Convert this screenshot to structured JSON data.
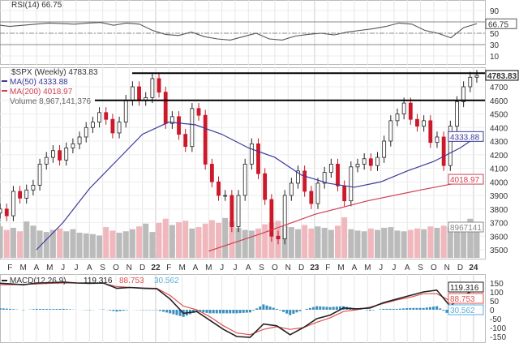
{
  "chart_data": [
    {
      "type": "line",
      "panel": "rsi",
      "title": "RSI(14) 66.75",
      "value": 66.75,
      "yticks": [
        90,
        50,
        30,
        10
      ],
      "ylim": [
        0,
        100
      ],
      "levels": [
        70,
        50,
        30
      ],
      "values": [
        65,
        62,
        64,
        66,
        68,
        67,
        66,
        68,
        69,
        64,
        68,
        66,
        55,
        48,
        46,
        52,
        44,
        40,
        38,
        44,
        50,
        40,
        38,
        45,
        48,
        50,
        47,
        52,
        55,
        58,
        62,
        68,
        66,
        55,
        50,
        42,
        60,
        66.75
      ]
    },
    {
      "type": "candlestick",
      "panel": "price",
      "title": "$SPX (Weekly) 4783.83",
      "last": "4783.83",
      "yticks": [
        4700,
        4600,
        4500,
        4400,
        4300,
        4200,
        4100,
        4000,
        3900,
        3800,
        3700,
        3600,
        3500
      ],
      "ylim": [
        3500,
        4860
      ],
      "closes": [
        3800,
        3750,
        3930,
        3880,
        3940,
        3975,
        4130,
        4180,
        4230,
        4160,
        4250,
        4280,
        4330,
        4400,
        4440,
        4510,
        4460,
        4360,
        4440,
        4600,
        4700,
        4600,
        4620,
        4760,
        4660,
        4430,
        4480,
        4350,
        4260,
        4540,
        4490,
        4130,
        4000,
        3900,
        3900,
        3670,
        3900,
        4130,
        4280,
        4060,
        3870,
        3600,
        3580,
        3900,
        3990,
        4080,
        3930,
        3840,
        3990,
        4070,
        4130,
        3970,
        3860,
        4110,
        4130,
        4170,
        4120,
        4180,
        4300,
        4450,
        4500,
        4580,
        4460,
        4410,
        4450,
        4290,
        4330,
        4120,
        4410,
        4590,
        4700,
        4770,
        4783.83
      ],
      "volume": [
        4.5,
        4.0,
        4.3,
        3.8,
        5.2,
        4.6,
        3.9,
        3.7,
        4.0,
        4.2,
        3.8,
        4.1,
        3.6,
        3.5,
        3.4,
        3.2,
        4.4,
        3.9,
        3.6,
        3.8,
        4.1,
        4.5,
        4.9,
        3.7,
        5.0,
        5.6,
        4.7,
        5.1,
        5.3,
        4.2,
        4.4,
        4.9,
        5.4,
        5.0,
        5.7,
        5.2,
        4.3,
        4.0,
        3.9,
        4.2,
        4.8,
        5.1,
        5.3,
        4.6,
        4.4,
        4.1,
        4.7,
        4.2,
        4.5,
        4.3,
        4.0,
        4.6,
        5.8,
        4.1,
        3.9,
        3.8,
        4.2,
        4.0,
        4.3,
        4.4,
        3.9,
        3.8,
        4.0,
        4.2,
        4.1,
        4.5,
        4.3,
        4.6,
        4.4,
        4.2,
        4.9,
        5.6,
        4.1
      ],
      "volume_label": "Volume 8,967,141,376",
      "volume_last": "8967141",
      "ma50": {
        "label": "MA(50) 4333.88",
        "last": "4333.88",
        "color": "#3a3a9a",
        "points": [
          [
            3,
            3500
          ],
          [
            5,
            3700
          ],
          [
            7,
            3950
          ],
          [
            9,
            4150
          ],
          [
            11,
            4350
          ],
          [
            13,
            4440
          ],
          [
            15,
            4420
          ],
          [
            17,
            4350
          ],
          [
            19,
            4250
          ],
          [
            21,
            4180
          ],
          [
            23,
            4050
          ],
          [
            25,
            3990
          ],
          [
            27,
            3960
          ],
          [
            29,
            4000
          ],
          [
            31,
            4080
          ],
          [
            33,
            4150
          ],
          [
            35,
            4250
          ],
          [
            36.25,
            4333.88
          ]
        ]
      },
      "ma200": {
        "label": "MA(200) 4018.97",
        "last": "4018.97",
        "color": "#d04050",
        "points": [
          [
            16,
            3490
          ],
          [
            20,
            3620
          ],
          [
            24,
            3760
          ],
          [
            28,
            3860
          ],
          [
            32,
            3940
          ],
          [
            36.25,
            4018.97
          ]
        ]
      },
      "hlines": [
        4800,
        4600
      ],
      "xlabels": [
        "F",
        "M",
        "A",
        "M",
        "J",
        "J",
        "A",
        "S",
        "O",
        "N",
        "D",
        "22",
        "F",
        "M",
        "A",
        "M",
        "J",
        "J",
        "A",
        "S",
        "O",
        "N",
        "D",
        "23",
        "F",
        "M",
        "A",
        "M",
        "J",
        "J",
        "A",
        "S",
        "O",
        "N",
        "D",
        "24"
      ]
    },
    {
      "type": "line",
      "panel": "macd",
      "title": "MACD(12,26,9)",
      "macd_label": "119.316",
      "signal_label": "88.753",
      "hist_label": "30.562",
      "yticks": [
        150,
        100,
        50,
        0,
        -50,
        -100,
        -150
      ],
      "ylim": [
        -170,
        170
      ],
      "macd": [
        150,
        145,
        140,
        150,
        152,
        155,
        150,
        148,
        150,
        120,
        125,
        120,
        118,
        60,
        -20,
        -10,
        -60,
        -110,
        -150,
        -155,
        -80,
        -90,
        -140,
        -100,
        -50,
        -30,
        10,
        5,
        10,
        40,
        60,
        80,
        100,
        110,
        20,
        80,
        119.316
      ],
      "signal": [
        140,
        140,
        142,
        145,
        148,
        150,
        150,
        150,
        148,
        130,
        125,
        122,
        120,
        80,
        20,
        0,
        -40,
        -90,
        -130,
        -140,
        -110,
        -95,
        -110,
        -100,
        -70,
        -45,
        -10,
        0,
        15,
        35,
        55,
        70,
        90,
        90,
        50,
        60,
        88.753
      ],
      "colors": {
        "macd": "#222222",
        "signal": "#e05050",
        "hist": "#3a8fbf"
      }
    }
  ]
}
